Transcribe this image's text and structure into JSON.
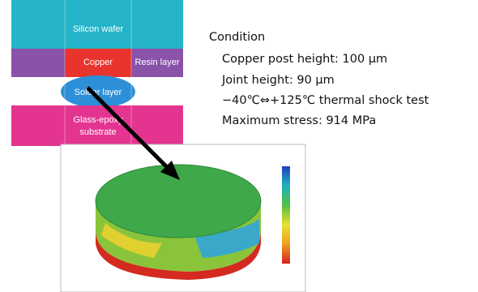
{
  "diagram": {
    "silicon_wafer": "Silicon wafer",
    "copper": "Copper",
    "resin_layer": "Resin layer",
    "solder_layer": "Solder layer",
    "substrate": [
      "Glass-epoxy",
      "substrate"
    ]
  },
  "condition": {
    "title": "Condition",
    "items": [
      "Copper post height: 100 µm",
      "Joint height: 90 µm",
      "−40℃⇔+125℃ thermal shock test",
      "Maximum stress: 914 MPa"
    ]
  }
}
